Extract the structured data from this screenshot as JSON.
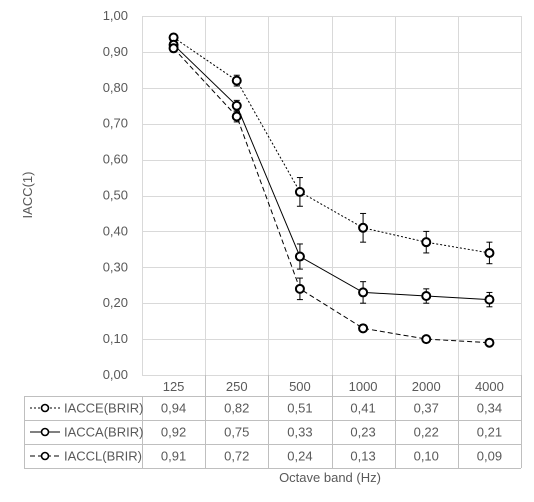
{
  "chart_data": {
    "type": "line",
    "categories": [
      "125",
      "250",
      "500",
      "1000",
      "2000",
      "4000"
    ],
    "xlabel": "Octave band (Hz)",
    "ylabel": "IACC(1)",
    "ylim": [
      0,
      1
    ],
    "ytick_step": 0.1,
    "ytick_labels": [
      "0,00",
      "0,10",
      "0,20",
      "0,30",
      "0,40",
      "0,50",
      "0,60",
      "0,70",
      "0,80",
      "0,90",
      "1,00"
    ],
    "grid": true,
    "legend": "data-table-below",
    "series": [
      {
        "name": "IACCE(BRIR)",
        "style": "dotted",
        "values": [
          0.94,
          0.82,
          0.51,
          0.41,
          0.37,
          0.34
        ],
        "labels": [
          "0,94",
          "0,82",
          "0,51",
          "0,41",
          "0,37",
          "0,34"
        ],
        "error": [
          0.01,
          0.015,
          0.04,
          0.04,
          0.03,
          0.03
        ]
      },
      {
        "name": "IACCA(BRIR)",
        "style": "solid",
        "values": [
          0.92,
          0.75,
          0.33,
          0.23,
          0.22,
          0.21
        ],
        "labels": [
          "0,92",
          "0,75",
          "0,33",
          "0,23",
          "0,22",
          "0,21"
        ],
        "error": [
          0.01,
          0.015,
          0.035,
          0.03,
          0.02,
          0.02
        ]
      },
      {
        "name": "IACCL(BRIR)",
        "style": "dashed",
        "values": [
          0.91,
          0.72,
          0.24,
          0.13,
          0.1,
          0.09
        ],
        "labels": [
          "0,91",
          "0,72",
          "0,24",
          "0,13",
          "0,10",
          "0,09"
        ],
        "error": [
          0.01,
          0.015,
          0.03,
          0.01,
          0.008,
          0.008
        ]
      }
    ]
  },
  "colors": {
    "line": "#000000",
    "grid": "#d9d9d9",
    "text": "#595959"
  }
}
